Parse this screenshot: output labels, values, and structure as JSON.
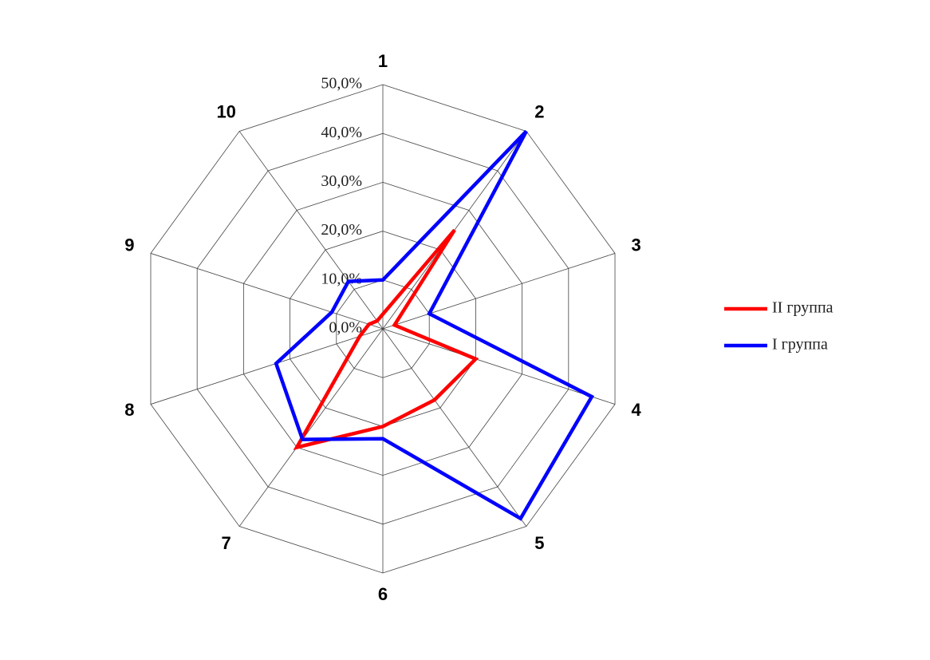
{
  "chart_data": {
    "type": "radar",
    "categories": [
      "1",
      "2",
      "3",
      "4",
      "5",
      "6",
      "7",
      "8",
      "9",
      "10"
    ],
    "series": [
      {
        "name": "II группа",
        "color": "#ff0000",
        "values": [
          3,
          25,
          2.5,
          20,
          18,
          20,
          30,
          5,
          3,
          2
        ]
      },
      {
        "name": "I группа",
        "color": "#0000ff",
        "values": [
          10,
          50,
          10,
          45,
          48,
          22.5,
          28,
          23,
          11,
          12
        ]
      }
    ],
    "ylim": [
      0,
      50
    ],
    "yticks": [
      {
        "value": 0,
        "label": "0,0%"
      },
      {
        "value": 10,
        "label": "10,0%"
      },
      {
        "value": 20,
        "label": "20,0%"
      },
      {
        "value": 30,
        "label": "30,0%"
      },
      {
        "value": 40,
        "label": "40,0%"
      },
      {
        "value": 50,
        "label": "50,0%"
      }
    ],
    "grid": true,
    "legend": "right"
  }
}
